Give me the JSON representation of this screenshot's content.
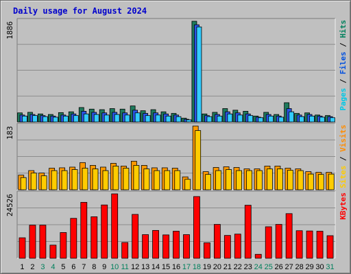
{
  "chart_data": {
    "type": "bar",
    "title": "Daily usage for August 2024",
    "categories": [
      "1",
      "2",
      "3",
      "4",
      "5",
      "6",
      "7",
      "8",
      "9",
      "10",
      "11",
      "12",
      "13",
      "14",
      "15",
      "16",
      "17",
      "18",
      "19",
      "20",
      "21",
      "22",
      "23",
      "24",
      "25",
      "26",
      "27",
      "28",
      "29",
      "30",
      "31"
    ],
    "weekend_days": [
      "3",
      "4",
      "10",
      "11",
      "17",
      "18",
      "24",
      "25",
      "31"
    ],
    "panels": [
      {
        "id": "pages_files_hits",
        "ymax_label": "1886",
        "ylim": [
          0,
          1886
        ],
        "right_labels": [
          {
            "text": "Pages",
            "color": "#00c8e6"
          },
          {
            "text": " / ",
            "color": "#000000"
          },
          {
            "text": "Files",
            "color": "#0050e0"
          },
          {
            "text": " / ",
            "color": "#000000"
          },
          {
            "text": "Hits",
            "color": "#00805c"
          }
        ],
        "series": [
          {
            "name": "Hits",
            "color": "#1f7a5c",
            "values": [
              170,
              180,
              150,
              140,
              175,
              190,
              270,
              240,
              230,
              250,
              240,
              300,
              210,
              230,
              190,
              160,
              70,
              1886,
              150,
              180,
              250,
              220,
              200,
              110,
              180,
              140,
              360,
              160,
              170,
              130,
              120
            ]
          },
          {
            "name": "Files",
            "color": "#2a55e6",
            "values": [
              130,
              140,
              120,
              110,
              130,
              150,
              200,
              180,
              170,
              180,
              170,
              220,
              160,
              170,
              150,
              130,
              50,
              1820,
              120,
              140,
              190,
              170,
              150,
              90,
              140,
              110,
              250,
              130,
              140,
              110,
              100
            ]
          },
          {
            "name": "Pages",
            "color": "#33ccff",
            "values": [
              110,
              120,
              100,
              90,
              110,
              120,
              150,
              140,
              130,
              140,
              130,
              170,
              120,
              130,
              110,
              100,
              40,
              1780,
              100,
              110,
              150,
              130,
              120,
              80,
              110,
              90,
              190,
              100,
              110,
              90,
              80
            ]
          }
        ]
      },
      {
        "id": "visits_sites",
        "ymax_label": "183",
        "ylim": [
          0,
          183
        ],
        "right_labels": [
          {
            "text": "Sites",
            "color": "#ffcc00"
          },
          {
            "text": " / ",
            "color": "#000000"
          },
          {
            "text": "Visits",
            "color": "#ff8c00"
          }
        ],
        "series": [
          {
            "name": "Visits",
            "color": "#ff9900",
            "values": [
              42,
              55,
              48,
              62,
              63,
              65,
              78,
              70,
              65,
              76,
              68,
              82,
              70,
              63,
              63,
              62,
              37,
              183,
              52,
              64,
              66,
              64,
              60,
              60,
              68,
              68,
              62,
              60,
              52,
              50,
              50
            ]
          },
          {
            "name": "Sites",
            "color": "#ffcc00",
            "values": [
              35,
              48,
              40,
              55,
              55,
              58,
              62,
              60,
              55,
              68,
              62,
              70,
              60,
              55,
              55,
              55,
              30,
              170,
              44,
              55,
              58,
              55,
              55,
              55,
              60,
              60,
              56,
              55,
              45,
              44,
              45
            ]
          }
        ]
      },
      {
        "id": "kbytes",
        "ymax_label": "24526",
        "ylim": [
          0,
          24526
        ],
        "right_labels": [
          {
            "text": "KBytes",
            "color": "#ff0000"
          }
        ],
        "series": [
          {
            "name": "KBytes",
            "color": "#ff0000",
            "values": [
              7800,
              12600,
              12600,
              5000,
              9800,
              15200,
              21300,
              15800,
              20300,
              24526,
              6000,
              16700,
              9000,
              10600,
              8900,
              10300,
              9000,
              23500,
              5900,
              12900,
              8700,
              9200,
              20200,
              1500,
              12000,
              12900,
              17000,
              10500,
              10400,
              10300,
              8600
            ]
          }
        ]
      }
    ]
  }
}
